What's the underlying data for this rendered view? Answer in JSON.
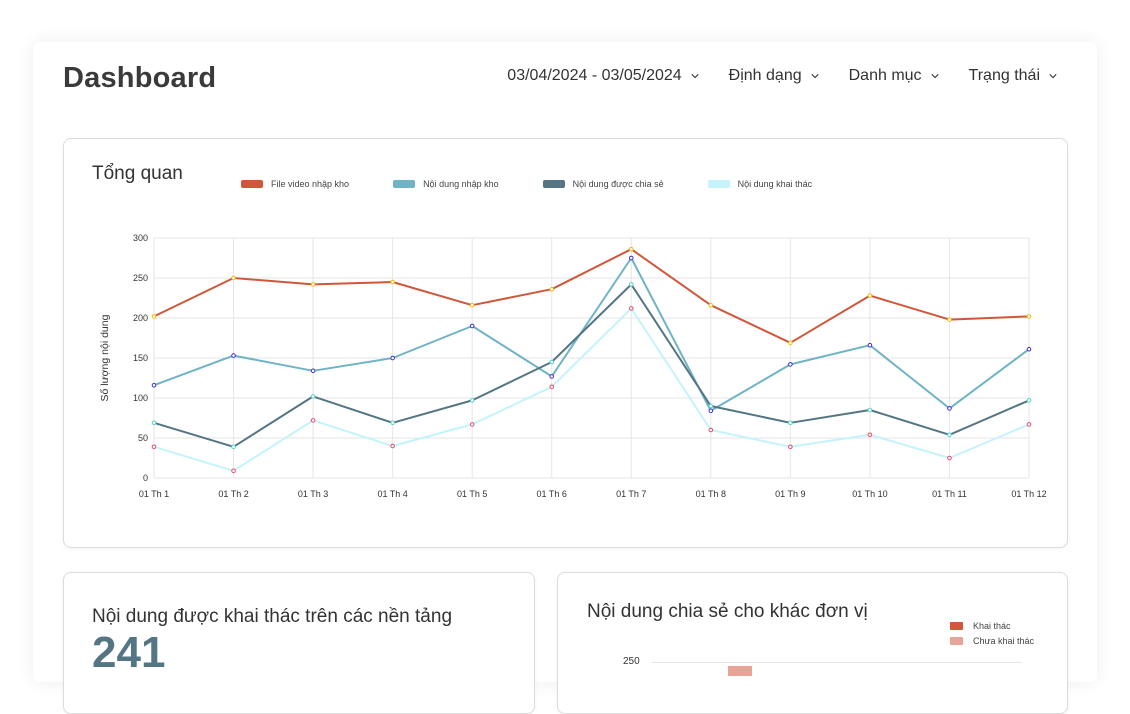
{
  "header": {
    "title": "Dashboard",
    "filters": {
      "date_range": "03/04/2024 - 03/05/2024",
      "format": "Định dạng",
      "category": "Danh mục",
      "status": "Trạng thái"
    }
  },
  "overview": {
    "title": "Tổng quan",
    "legend": [
      {
        "label": "File video nhập kho",
        "color": "#d0573a"
      },
      {
        "label": "Nội dung nhập kho",
        "color": "#6fb3c5"
      },
      {
        "label": "Nội dung được chia sẻ",
        "color": "#547684"
      },
      {
        "label": "Nội dung khai thác",
        "color": "#c4f3fc"
      }
    ]
  },
  "platform_card": {
    "title": "Nội dung được khai thác trên các nền tảng",
    "value": "241"
  },
  "share_card": {
    "title": "Nội dung chia sẻ cho khác đơn vị",
    "legend": [
      {
        "label": "Khai thác",
        "color": "#d0573a"
      },
      {
        "label": "Chưa khai thác",
        "color": "#e8a597"
      }
    ],
    "y_tick": "250"
  },
  "chart_data": {
    "type": "line",
    "title": "Tổng quan",
    "xlabel": "",
    "ylabel": "Số lượng nội dung",
    "ylim": [
      0,
      300
    ],
    "yticks": [
      0,
      50,
      100,
      150,
      200,
      250,
      300
    ],
    "categories": [
      "01 Th 1",
      "01 Th 2",
      "01 Th 3",
      "01 Th 4",
      "01 Th 5",
      "01 Th 6",
      "01 Th 7",
      "01 Th 8",
      "01 Th 9",
      "01 Th 10",
      "01 Th 11",
      "01 Th 12"
    ],
    "series": [
      {
        "name": "File video nhập kho",
        "color": "#d0573a",
        "marker": "#f5b800",
        "values": [
          202,
          250,
          242,
          245,
          216,
          236,
          286,
          216,
          169,
          228,
          198,
          202
        ]
      },
      {
        "name": "Nội dung nhập kho",
        "color": "#6fb3c5",
        "marker": "#3b2fd9",
        "values": [
          116,
          153,
          134,
          150,
          190,
          127,
          275,
          84,
          142,
          166,
          87,
          161
        ]
      },
      {
        "name": "Nội dung được chia sẻ",
        "color": "#547684",
        "marker": "#4fd6c6",
        "values": [
          69,
          39,
          102,
          69,
          97,
          145,
          242,
          90,
          69,
          85,
          54,
          97
        ]
      },
      {
        "name": "Nội dung khai thác",
        "color": "#c4f3fc",
        "marker": "#e84a6a",
        "values": [
          39,
          9,
          72,
          40,
          67,
          114,
          212,
          60,
          39,
          54,
          25,
          67
        ]
      }
    ]
  }
}
